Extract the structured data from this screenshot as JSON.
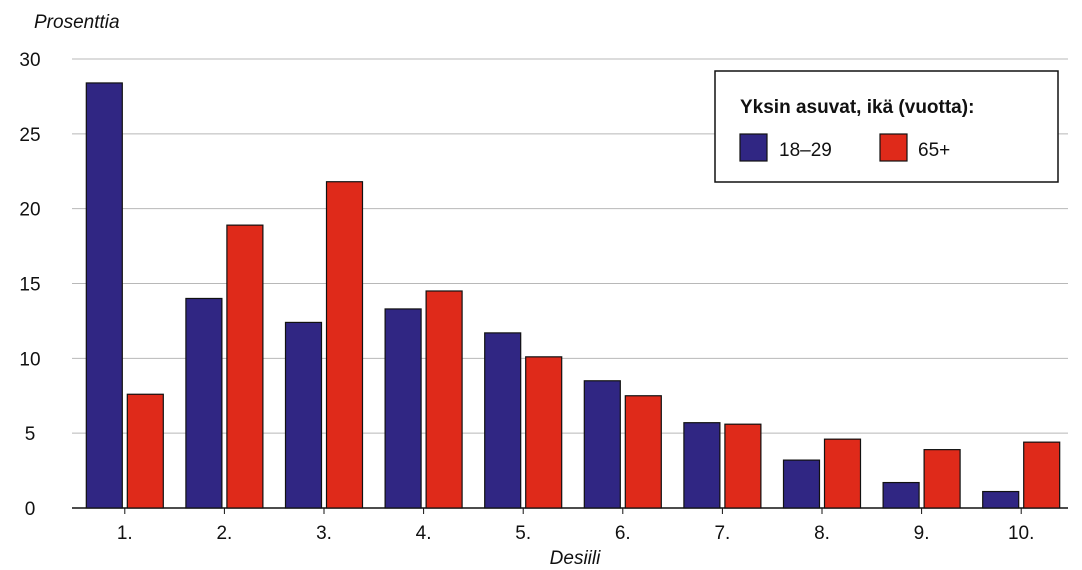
{
  "chart_data": {
    "type": "bar",
    "ylabel": "Prosenttia",
    "xlabel": "Desiili",
    "ylim": [
      0,
      30
    ],
    "yticks": [
      0,
      5,
      10,
      15,
      20,
      25,
      30
    ],
    "grid": true,
    "categories": [
      "1.",
      "2.",
      "3.",
      "4.",
      "5.",
      "6.",
      "7.",
      "8.",
      "9.",
      "10."
    ],
    "legend": {
      "title": "Yksin asuvat, ikä (vuotta):",
      "placement": "top-right"
    },
    "series": [
      {
        "name": "18–29",
        "color": "#302683",
        "values": [
          28.4,
          14.0,
          12.4,
          13.3,
          11.7,
          8.5,
          5.7,
          3.2,
          1.7,
          1.1
        ]
      },
      {
        "name": "65+",
        "color": "#df2a1a",
        "values": [
          7.6,
          18.9,
          21.8,
          14.5,
          10.1,
          7.5,
          5.6,
          4.6,
          3.9,
          4.4
        ]
      }
    ]
  }
}
